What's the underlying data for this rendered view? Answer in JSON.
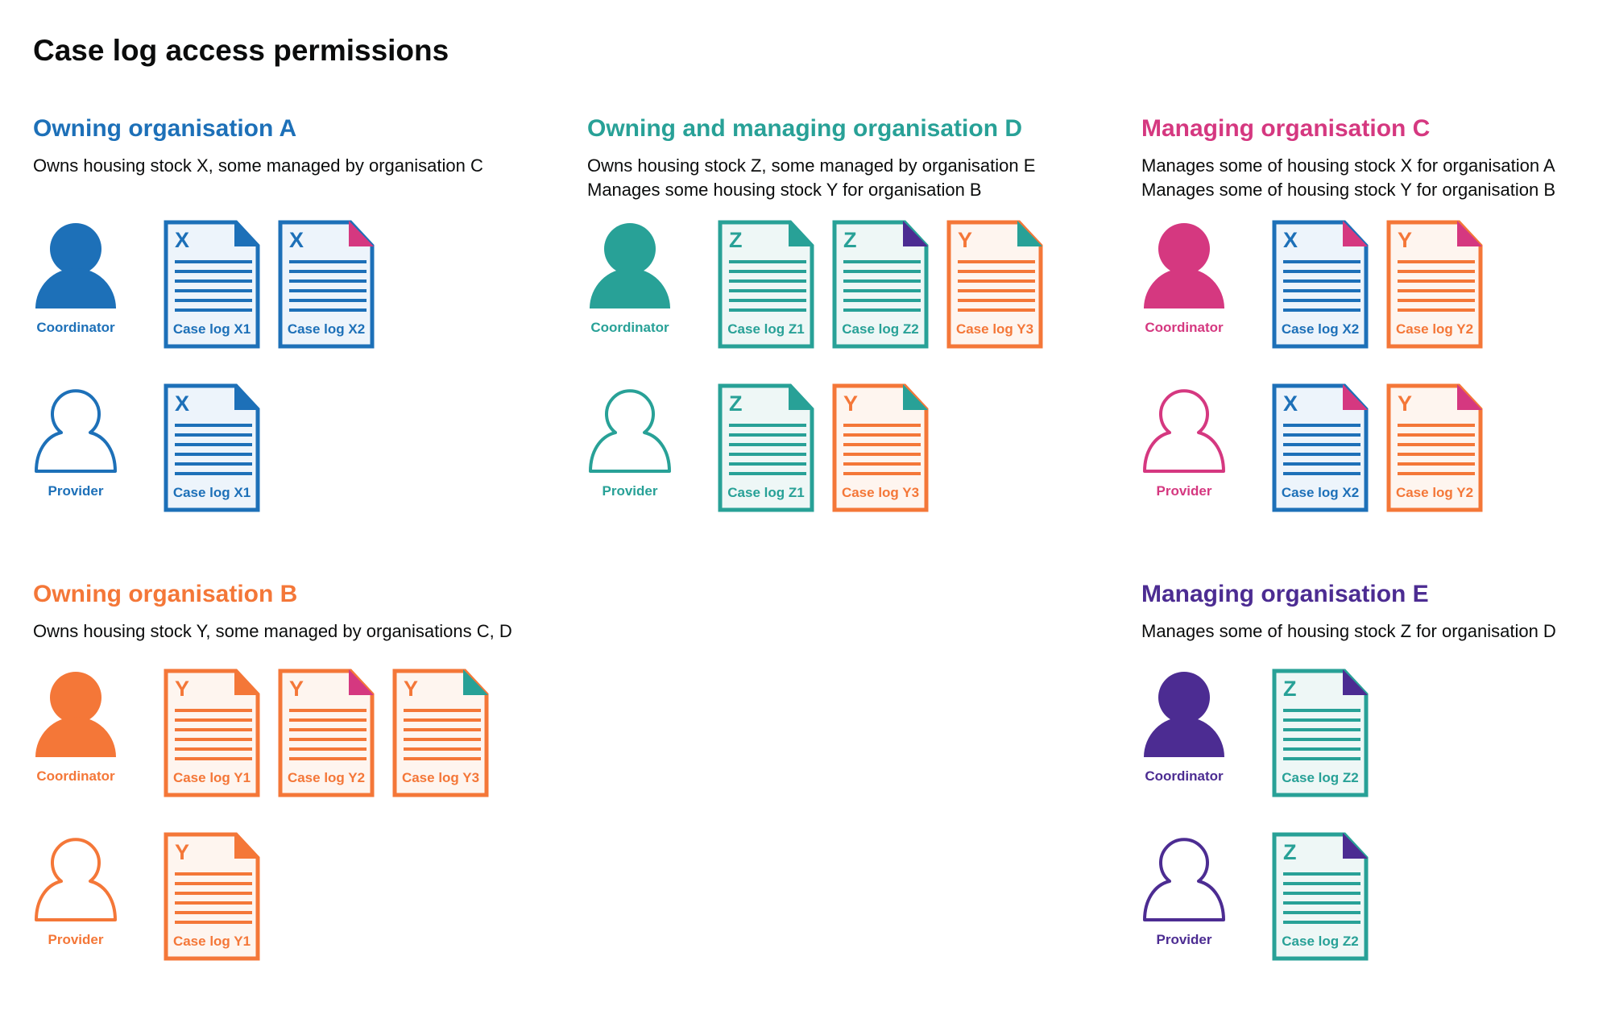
{
  "title": "Case log access permissions",
  "colors": {
    "A": "#1d70b8",
    "B": "#f47738",
    "C": "#d53880",
    "D": "#28a197",
    "E": "#4c2c92"
  },
  "doc_fills": {
    "X": "#edf4fb",
    "Y": "#fef5ef",
    "Z": "#eef7f6"
  },
  "doc_colors": {
    "X": "#1d70b8",
    "Y": "#f47738",
    "Z": "#28a197"
  },
  "sections": [
    {
      "title": "Owning organisation A",
      "org": "A",
      "desc": [
        "Owns housing stock X, some managed by organisation C"
      ],
      "rows": [
        {
          "role": "Coordinator",
          "icon": "person-filled-icon",
          "docs": [
            {
              "letter": "X",
              "label": "Case log X1",
              "corner": "A"
            },
            {
              "letter": "X",
              "label": "Case log X2",
              "corner": "C"
            }
          ]
        },
        {
          "role": "Provider",
          "icon": "person-outline-icon",
          "docs": [
            {
              "letter": "X",
              "label": "Case log X1",
              "corner": "A"
            }
          ]
        }
      ]
    },
    {
      "title": "Owning and managing organisation D",
      "org": "D",
      "desc": [
        "Owns housing stock Z, some managed by organisation E",
        "Manages some housing stock Y for organisation B"
      ],
      "rows": [
        {
          "role": "Coordinator",
          "icon": "person-filled-icon",
          "docs": [
            {
              "letter": "Z",
              "label": "Case log Z1",
              "corner": "D"
            },
            {
              "letter": "Z",
              "label": "Case log Z2",
              "corner": "E"
            },
            {
              "letter": "Y",
              "label": "Case log Y3",
              "corner": "D"
            }
          ]
        },
        {
          "role": "Provider",
          "icon": "person-outline-icon",
          "docs": [
            {
              "letter": "Z",
              "label": "Case log Z1",
              "corner": "D"
            },
            {
              "letter": "Y",
              "label": "Case log Y3",
              "corner": "D"
            }
          ]
        }
      ]
    },
    {
      "title": "Managing organisation C",
      "org": "C",
      "desc": [
        "Manages some of housing stock X for organisation A",
        "Manages some of housing stock Y for organisation B"
      ],
      "rows": [
        {
          "role": "Coordinator",
          "icon": "person-filled-icon",
          "docs": [
            {
              "letter": "X",
              "label": "Case log X2",
              "corner": "C"
            },
            {
              "letter": "Y",
              "label": "Case log Y2",
              "corner": "C"
            }
          ]
        },
        {
          "role": "Provider",
          "icon": "person-outline-icon",
          "docs": [
            {
              "letter": "X",
              "label": "Case log X2",
              "corner": "C"
            },
            {
              "letter": "Y",
              "label": "Case log Y2",
              "corner": "C"
            }
          ]
        }
      ]
    },
    {
      "title": "Owning organisation B",
      "org": "B",
      "desc": [
        "Owns housing stock Y, some managed by organisations C, D"
      ],
      "rows": [
        {
          "role": "Coordinator",
          "icon": "person-filled-icon",
          "docs": [
            {
              "letter": "Y",
              "label": "Case log Y1",
              "corner": "B"
            },
            {
              "letter": "Y",
              "label": "Case log Y2",
              "corner": "C"
            },
            {
              "letter": "Y",
              "label": "Case log Y3",
              "corner": "D"
            }
          ]
        },
        {
          "role": "Provider",
          "icon": "person-outline-icon",
          "docs": [
            {
              "letter": "Y",
              "label": "Case log Y1",
              "corner": "B"
            }
          ]
        }
      ]
    },
    {
      "title": "Managing organisation E",
      "org": "E",
      "desc": [
        "Manages some of housing stock Z for organisation D"
      ],
      "rows": [
        {
          "role": "Coordinator",
          "icon": "person-filled-icon",
          "docs": [
            {
              "letter": "Z",
              "label": "Case log Z2",
              "corner": "E"
            }
          ]
        },
        {
          "role": "Provider",
          "icon": "person-outline-icon",
          "docs": [
            {
              "letter": "Z",
              "label": "Case log Z2",
              "corner": "E"
            }
          ]
        }
      ]
    }
  ]
}
